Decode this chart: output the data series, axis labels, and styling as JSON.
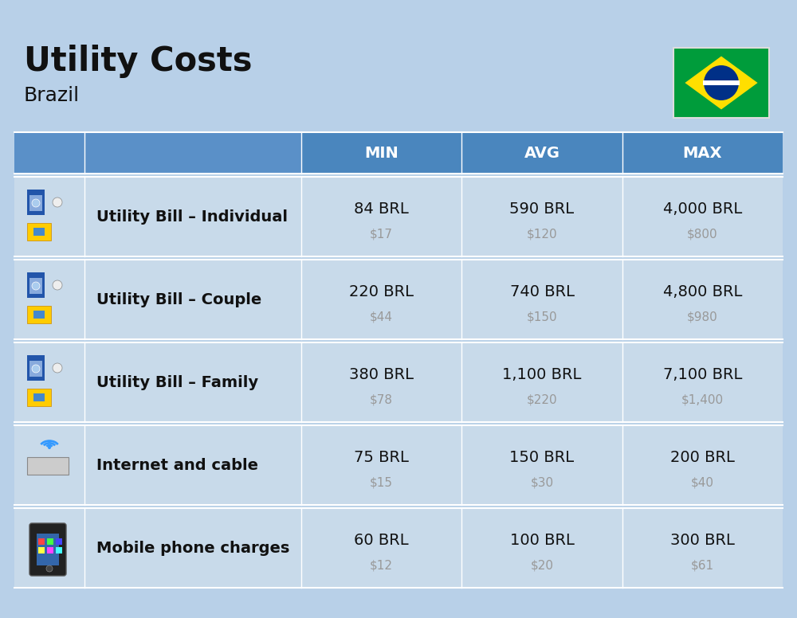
{
  "title": "Utility Costs",
  "subtitle": "Brazil",
  "bg_color": "#b8d0e8",
  "header_bg_color": "#4a86be",
  "header_text_color": "#ffffff",
  "row_bg_color": "#c8daea",
  "row_alt_color": "#bdd0e2",
  "cell_border_color": "#a0b8d0",
  "col_headers": [
    "MIN",
    "AVG",
    "MAX"
  ],
  "rows": [
    {
      "label": "Utility Bill – Individual",
      "min_brl": "84 BRL",
      "min_usd": "$17",
      "avg_brl": "590 BRL",
      "avg_usd": "$120",
      "max_brl": "4,000 BRL",
      "max_usd": "$800"
    },
    {
      "label": "Utility Bill – Couple",
      "min_brl": "220 BRL",
      "min_usd": "$44",
      "avg_brl": "740 BRL",
      "avg_usd": "$150",
      "max_brl": "4,800 BRL",
      "max_usd": "$980"
    },
    {
      "label": "Utility Bill – Family",
      "min_brl": "380 BRL",
      "min_usd": "$78",
      "avg_brl": "1,100 BRL",
      "avg_usd": "$220",
      "max_brl": "7,100 BRL",
      "max_usd": "$1,400"
    },
    {
      "label": "Internet and cable",
      "min_brl": "75 BRL",
      "min_usd": "$15",
      "avg_brl": "150 BRL",
      "avg_usd": "$30",
      "max_brl": "200 BRL",
      "max_usd": "$40"
    },
    {
      "label": "Mobile phone charges",
      "min_brl": "60 BRL",
      "min_usd": "$12",
      "avg_brl": "100 BRL",
      "avg_usd": "$20",
      "max_brl": "300 BRL",
      "max_usd": "$61"
    }
  ],
  "flag_green": "#009c3b",
  "flag_yellow": "#ffdf00",
  "flag_blue": "#003087",
  "flag_white": "#ffffff",
  "title_fontsize": 30,
  "subtitle_fontsize": 18,
  "header_fontsize": 14,
  "label_fontsize": 14,
  "brl_fontsize": 14,
  "usd_fontsize": 11,
  "usd_color": "#999999",
  "text_color": "#111111"
}
